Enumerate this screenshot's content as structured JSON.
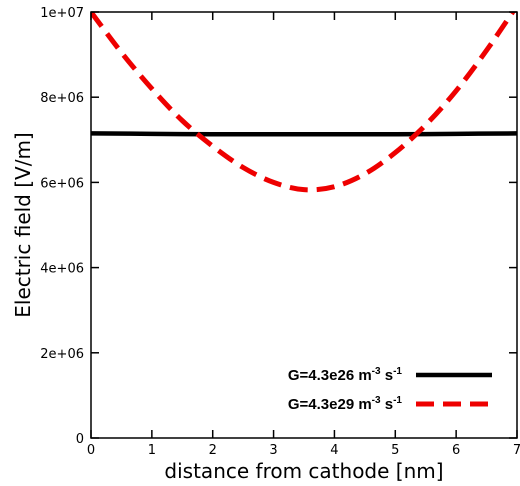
{
  "chart_data": {
    "type": "line",
    "title": "",
    "xlabel": "distance from cathode [nm]",
    "ylabel": "Electric field [V/m]",
    "xlim": [
      0,
      7
    ],
    "ylim": [
      0,
      10000000
    ],
    "x_ticks": [
      0,
      1,
      2,
      3,
      4,
      5,
      6,
      7
    ],
    "x_tick_labels": [
      "0",
      "1",
      "2",
      "3",
      "4",
      "5",
      "6",
      "7"
    ],
    "y_ticks": [
      0,
      2000000,
      4000000,
      6000000,
      8000000,
      10000000
    ],
    "y_tick_labels": [
      "0",
      "2e+06",
      "4e+06",
      "6e+06",
      "8e+06",
      "1e+07"
    ],
    "grid": false,
    "legend_position": "bottom-right",
    "series": [
      {
        "name": "G=4.3e26 m-3 s-1",
        "legend": {
          "base": "G=4.3e26 m",
          "exp1": "-3",
          "mid": " s",
          "exp2": "-1"
        },
        "color": "#000000",
        "style": "solid",
        "x": [
          0,
          1,
          2,
          3,
          3.5,
          4,
          5,
          6,
          7
        ],
        "y": [
          7150000,
          7140000,
          7130000,
          7130000,
          7130000,
          7130000,
          7130000,
          7140000,
          7150000
        ]
      },
      {
        "name": "G=4.3e29 m-3 s-1",
        "legend": {
          "base": "G=4.3e29 m",
          "exp1": "-3",
          "mid": " s",
          "exp2": "-1"
        },
        "color": "#ee0000",
        "style": "dashed",
        "x": [
          0,
          0.5,
          1,
          1.5,
          2,
          2.5,
          3,
          3.5,
          4,
          4.5,
          5,
          5.5,
          6,
          6.5,
          7
        ],
        "y": [
          10000000,
          9050000,
          8200000,
          7450000,
          6850000,
          6350000,
          6000000,
          5830000,
          5900000,
          6200000,
          6700000,
          7350000,
          8150000,
          9100000,
          10150000
        ]
      }
    ]
  }
}
